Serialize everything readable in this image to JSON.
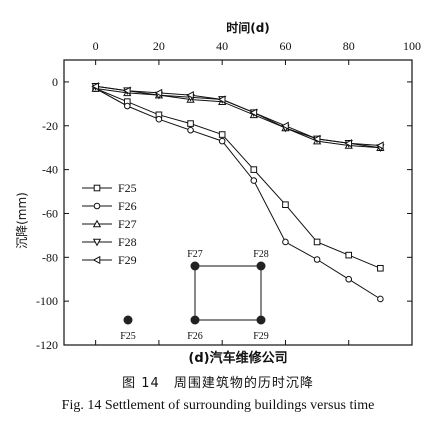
{
  "chart_data": {
    "type": "line",
    "x_axis_title": "时间(d)",
    "y_axis_title": "沉降(mm)",
    "xlim": [
      -10,
      100
    ],
    "ylim": [
      -120,
      10
    ],
    "x_ticks": [
      0,
      20,
      40,
      60,
      80,
      100
    ],
    "y_ticks": [
      0,
      -20,
      -40,
      -60,
      -80,
      -100,
      -120
    ],
    "grid": false,
    "legend_position": "left-middle",
    "subtitle": "(d)汽车维修公司",
    "series": [
      {
        "name": "F25",
        "marker": "square",
        "x": [
          0,
          10,
          20,
          30,
          40,
          50,
          60,
          70,
          80,
          90
        ],
        "y": [
          -3,
          -9,
          -15,
          -19,
          -24,
          -40,
          -56,
          -73,
          -79,
          -85
        ]
      },
      {
        "name": "F26",
        "marker": "circle",
        "x": [
          0,
          10,
          20,
          30,
          40,
          50,
          60,
          70,
          80,
          90
        ],
        "y": [
          -3,
          -11,
          -17,
          -22,
          -27,
          -45,
          -73,
          -81,
          -90,
          -99
        ]
      },
      {
        "name": "F27",
        "marker": "triangle-up",
        "x": [
          0,
          10,
          20,
          30,
          40,
          50,
          60,
          70,
          80,
          90
        ],
        "y": [
          -3,
          -5,
          -6,
          -8,
          -9,
          -15,
          -21,
          -27,
          -29,
          -30
        ]
      },
      {
        "name": "F28",
        "marker": "triangle-down",
        "x": [
          0,
          10,
          20,
          30,
          40,
          50,
          60,
          70,
          80,
          90
        ],
        "y": [
          -2,
          -4,
          -6,
          -7,
          -8,
          -14,
          -21,
          -26,
          -28,
          -30
        ]
      },
      {
        "name": "F29",
        "marker": "triangle-left",
        "x": [
          0,
          10,
          20,
          30,
          40,
          50,
          60,
          70,
          80,
          90
        ],
        "y": [
          -2,
          -4,
          -5,
          -6,
          -8,
          -14,
          -20,
          -26,
          -28,
          -29
        ]
      }
    ],
    "inset": {
      "points": [
        {
          "label": "F25",
          "row": "bottom",
          "col": 0,
          "label_side": "below"
        },
        {
          "label": "F26",
          "row": "bottom",
          "col": 1,
          "label_side": "below"
        },
        {
          "label": "F27",
          "row": "top",
          "col": 1,
          "label_side": "above"
        },
        {
          "label": "F28",
          "row": "top",
          "col": 2,
          "label_side": "above"
        },
        {
          "label": "F29",
          "row": "bottom",
          "col": 2,
          "label_side": "below"
        }
      ]
    }
  },
  "caption": {
    "cn": "图 14　周围建筑物的历时沉降",
    "en": "Fig. 14   Settlement of surrounding buildings versus time"
  }
}
